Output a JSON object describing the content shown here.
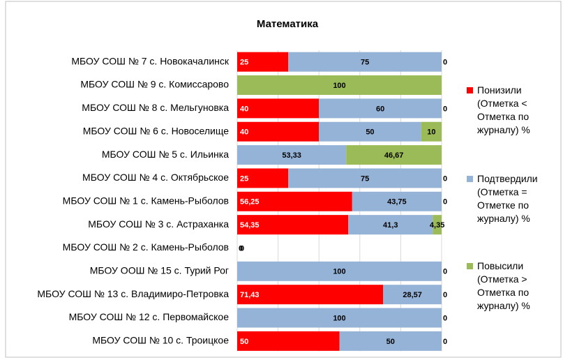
{
  "chart_data": {
    "type": "stacked_barh",
    "title": "Математика",
    "categories": [
      "МБОУ СОШ № 7 с. Новокачалинск",
      "МБОУ СОШ № 9 с. Комиссарово",
      "МБОУ СОШ № 8 с. Мельгуновка",
      "МБОУ СОШ № 6 с. Новоселище",
      "МБОУ СОШ № 5 с. Ильинка",
      "МБОУ СОШ № 4 с. Октябрьское",
      "МБОУ СОШ № 1 с. Камень-Рыболов",
      "МБОУ СОШ № 3 с. Астраханка",
      "МБОУ СОШ № 2 с. Камень-Рыболов",
      "МБОУ ООШ № 15 с. Турий Рог",
      "МБОУ СОШ № 13 с. Владимиро-Петровка",
      "МБОУ СОШ № 12 с. Первомайское",
      "МБОУ СОШ № 10 с. Троицкое"
    ],
    "series": [
      {
        "name": "Понизили (Отметка < Отметка по журналу) %",
        "color": "#ff0000",
        "values": [
          25,
          0,
          40,
          40,
          0,
          25,
          56.25,
          54.35,
          0,
          0,
          71.43,
          0,
          50
        ],
        "value_labels": [
          "25",
          "0",
          "40",
          "40",
          "0",
          "25",
          "56,25",
          "54,35",
          "0",
          "0",
          "71,43",
          "0",
          "50"
        ]
      },
      {
        "name": "Подтвердили (Отметка = Отметке по журналу) %",
        "color": "#95b3d7",
        "values": [
          75,
          0,
          60,
          50,
          53.33,
          75,
          43.75,
          41.3,
          0,
          100,
          28.57,
          100,
          50
        ],
        "value_labels": [
          "75",
          "0",
          "60",
          "50",
          "53,33",
          "75",
          "43,75",
          "41,3",
          "0",
          "100",
          "28,57",
          "100",
          "50"
        ]
      },
      {
        "name": "Повысили (Отметка > Отметка по журналу) %",
        "color": "#9bbb59",
        "values": [
          0,
          100,
          0,
          10,
          46.67,
          0,
          0,
          4.35,
          null,
          0,
          0,
          0,
          0
        ],
        "value_labels": [
          "0",
          "100",
          "0",
          "10",
          "46,67",
          "0",
          "0",
          "4,35",
          null,
          "0",
          "0",
          "0",
          "0"
        ]
      }
    ],
    "xlim": [
      0,
      100
    ],
    "xticks": [
      0,
      20,
      40,
      60,
      80,
      100
    ],
    "grid": true,
    "legend": "right"
  }
}
